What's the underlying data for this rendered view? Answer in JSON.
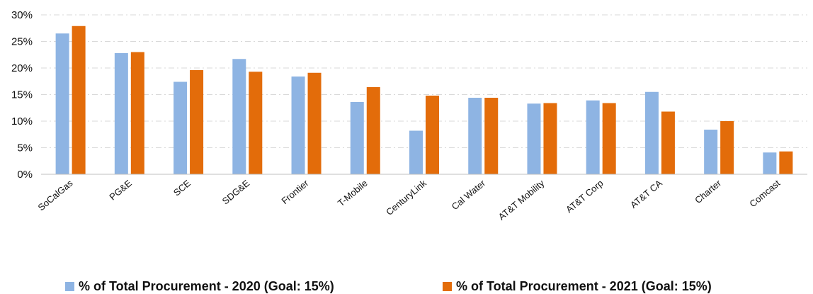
{
  "chart_data": {
    "type": "bar",
    "categories": [
      "SoCalGas",
      "PG&E",
      "SCE",
      "SDG&E",
      "Frontier",
      "T-Mobile",
      "CenturyLink",
      "Cal Water",
      "AT&T Mobility",
      "AT&T Corp",
      "AT&T CA",
      "Charter",
      "Comcast"
    ],
    "series": [
      {
        "name": "% of Total Procurement - 2020 (Goal: 15%)",
        "color": "#8EB4E3",
        "values": [
          26.5,
          22.8,
          17.4,
          21.7,
          18.4,
          13.6,
          8.2,
          14.4,
          13.3,
          13.9,
          15.5,
          8.4,
          4.1
        ]
      },
      {
        "name": "% of Total Procurement - 2021 (Goal: 15%)",
        "color": "#E36C0A",
        "values": [
          27.9,
          23.0,
          19.6,
          19.3,
          19.1,
          16.4,
          14.8,
          14.4,
          13.4,
          13.4,
          11.8,
          10.0,
          4.3
        ]
      }
    ],
    "yticks": [
      "0%",
      "5%",
      "10%",
      "15%",
      "20%",
      "25%",
      "30%"
    ],
    "ylim": [
      0,
      30
    ],
    "grid": true,
    "legend_position": "bottom"
  }
}
